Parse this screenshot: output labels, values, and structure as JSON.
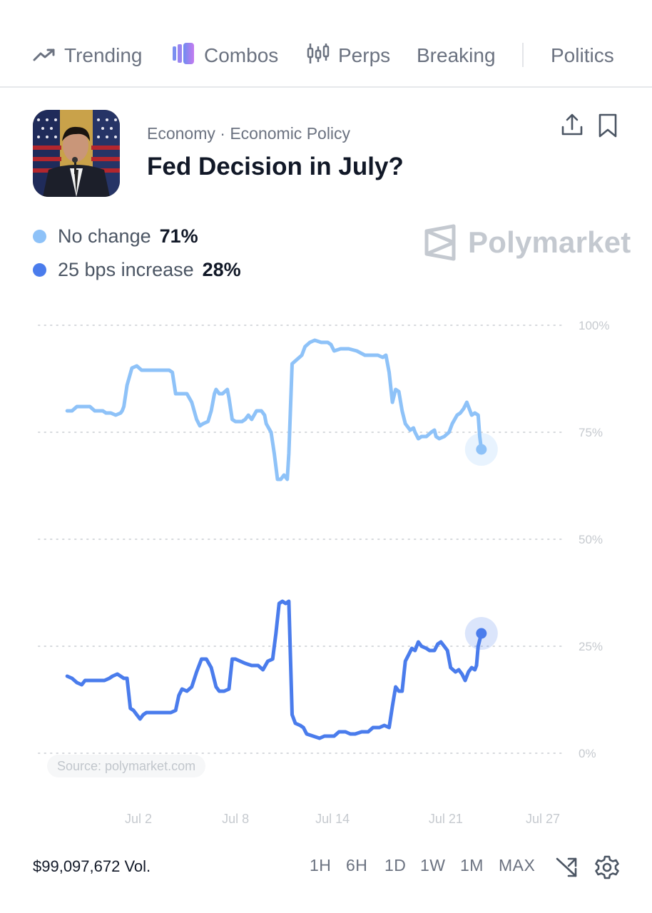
{
  "nav": {
    "items": [
      {
        "label": "Trending",
        "icon": "trending-icon"
      },
      {
        "label": "Combos",
        "icon": "combos-icon"
      },
      {
        "label": "Perps",
        "icon": "candlestick-icon"
      },
      {
        "label": "Breaking",
        "icon": ""
      },
      {
        "label": "Politics",
        "icon": ""
      }
    ]
  },
  "market": {
    "breadcrumb": "Economy · Economic Policy",
    "title": "Fed Decision in July?"
  },
  "legend": [
    {
      "name": "No change",
      "value": "71%",
      "color": "#8ec2f8"
    },
    {
      "name": "25 bps increase",
      "value": "28%",
      "color": "#4a7cec"
    }
  ],
  "brand": {
    "name": "Polymarket"
  },
  "source": "Source: polymarket.com",
  "footer": {
    "volume": "$99,097,672 Vol.",
    "ranges": [
      "1H",
      "6H",
      "1D",
      "1W",
      "1M",
      "MAX"
    ]
  },
  "chart_data": {
    "type": "line",
    "y_ticks": [
      "100%",
      "75%",
      "50%",
      "25%",
      "0%"
    ],
    "ylim": [
      0,
      100
    ],
    "x_ticks": [
      {
        "label": "Jul 2",
        "day": 2
      },
      {
        "label": "Jul 8",
        "day": 8
      },
      {
        "label": "Jul 14",
        "day": 14
      },
      {
        "label": "Jul 21",
        "day": 21
      },
      {
        "label": "Jul 27",
        "day": 27
      }
    ],
    "xlim": [
      -3.2,
      27
    ],
    "grid": true,
    "series": [
      {
        "name": "No change",
        "color": "#8ec2f8",
        "points": [
          [
            -2.4,
            80
          ],
          [
            -2.1,
            80
          ],
          [
            -1.8,
            81
          ],
          [
            -1.4,
            81
          ],
          [
            -1,
            81
          ],
          [
            -0.7,
            80
          ],
          [
            -0.2,
            80
          ],
          [
            0,
            79.5
          ],
          [
            0.3,
            79.5
          ],
          [
            0.6,
            79
          ],
          [
            0.9,
            79.5
          ],
          [
            1,
            80
          ],
          [
            1.1,
            81
          ],
          [
            1.3,
            86
          ],
          [
            1.6,
            90
          ],
          [
            1.9,
            90.5
          ],
          [
            2.2,
            89.5
          ],
          [
            2.8,
            89.5
          ],
          [
            3.5,
            89.5
          ],
          [
            3.9,
            89.5
          ],
          [
            4.1,
            89
          ],
          [
            4.3,
            84
          ],
          [
            4.6,
            84
          ],
          [
            5,
            84
          ],
          [
            5.3,
            82
          ],
          [
            5.6,
            78
          ],
          [
            5.8,
            76.5
          ],
          [
            6,
            77
          ],
          [
            6.3,
            77.5
          ],
          [
            6.5,
            80
          ],
          [
            6.7,
            84
          ],
          [
            6.8,
            85
          ],
          [
            7,
            84
          ],
          [
            7.2,
            84
          ],
          [
            7.5,
            85
          ],
          [
            7.6,
            83
          ],
          [
            7.8,
            78
          ],
          [
            8,
            77.5
          ],
          [
            8.4,
            77.5
          ],
          [
            8.6,
            78
          ],
          [
            8.8,
            79
          ],
          [
            9,
            78
          ],
          [
            9.3,
            80
          ],
          [
            9.6,
            80
          ],
          [
            9.8,
            79
          ],
          [
            9.9,
            77
          ],
          [
            10.2,
            75
          ],
          [
            10.4,
            70
          ],
          [
            10.6,
            64
          ],
          [
            10.8,
            64
          ],
          [
            11,
            65
          ],
          [
            11.2,
            64
          ],
          [
            11.3,
            70
          ],
          [
            11.5,
            91
          ],
          [
            11.8,
            92
          ],
          [
            12.1,
            93
          ],
          [
            12.3,
            95
          ],
          [
            12.6,
            96
          ],
          [
            12.9,
            96.5
          ],
          [
            13.3,
            96
          ],
          [
            13.7,
            96
          ],
          [
            13.9,
            95.5
          ],
          [
            14.1,
            94
          ],
          [
            14.5,
            94.5
          ],
          [
            15,
            94.5
          ],
          [
            15.5,
            94
          ],
          [
            16,
            93
          ],
          [
            16.4,
            93
          ],
          [
            16.8,
            93
          ],
          [
            17.1,
            92.5
          ],
          [
            17.3,
            93
          ],
          [
            17.5,
            89
          ],
          [
            17.7,
            82
          ],
          [
            17.9,
            85
          ],
          [
            18.1,
            84.5
          ],
          [
            18.3,
            80
          ],
          [
            18.5,
            77
          ],
          [
            18.8,
            75.5
          ],
          [
            19,
            76
          ],
          [
            19.1,
            75
          ],
          [
            19.3,
            73.5
          ],
          [
            19.5,
            74
          ],
          [
            19.8,
            74
          ],
          [
            20.1,
            75
          ],
          [
            20.3,
            75.5
          ],
          [
            20.4,
            74
          ],
          [
            20.6,
            73.5
          ],
          [
            20.9,
            74
          ],
          [
            21.2,
            75
          ],
          [
            21.4,
            77
          ],
          [
            21.7,
            79
          ],
          [
            21.9,
            79.5
          ],
          [
            22.1,
            80.5
          ],
          [
            22.3,
            82
          ],
          [
            22.4,
            81
          ],
          [
            22.6,
            79
          ],
          [
            22.8,
            79.5
          ],
          [
            23,
            79
          ],
          [
            23.1,
            74
          ],
          [
            23.2,
            71
          ]
        ]
      },
      {
        "name": "25 bps increase",
        "color": "#4a7cec",
        "points": [
          [
            -2.4,
            18
          ],
          [
            -2.1,
            17.5
          ],
          [
            -1.8,
            16.5
          ],
          [
            -1.5,
            16
          ],
          [
            -1.3,
            17
          ],
          [
            -0.9,
            17
          ],
          [
            -0.4,
            17
          ],
          [
            -0.1,
            17
          ],
          [
            0.2,
            17.5
          ],
          [
            0.4,
            18
          ],
          [
            0.7,
            18.5
          ],
          [
            0.9,
            18
          ],
          [
            1.1,
            17.5
          ],
          [
            1.3,
            17.5
          ],
          [
            1.5,
            10.5
          ],
          [
            1.7,
            10
          ],
          [
            1.9,
            9
          ],
          [
            2.1,
            8
          ],
          [
            2.3,
            9
          ],
          [
            2.5,
            9.5
          ],
          [
            3,
            9.5
          ],
          [
            3.5,
            9.5
          ],
          [
            4,
            9.5
          ],
          [
            4.3,
            10
          ],
          [
            4.5,
            13.5
          ],
          [
            4.7,
            15
          ],
          [
            5,
            14.5
          ],
          [
            5.3,
            15.5
          ],
          [
            5.6,
            19
          ],
          [
            5.9,
            22
          ],
          [
            6.2,
            22
          ],
          [
            6.5,
            20
          ],
          [
            6.8,
            15.5
          ],
          [
            7,
            14.5
          ],
          [
            7.3,
            14.5
          ],
          [
            7.6,
            15
          ],
          [
            7.8,
            22
          ],
          [
            8,
            22
          ],
          [
            8.3,
            21.5
          ],
          [
            8.6,
            21
          ],
          [
            9,
            20.5
          ],
          [
            9.4,
            20.5
          ],
          [
            9.7,
            19.5
          ],
          [
            10,
            21.5
          ],
          [
            10.3,
            22
          ],
          [
            10.5,
            28
          ],
          [
            10.7,
            35
          ],
          [
            10.9,
            35.5
          ],
          [
            11.1,
            35
          ],
          [
            11.3,
            35.5
          ],
          [
            11.5,
            9
          ],
          [
            11.7,
            7
          ],
          [
            12,
            6.5
          ],
          [
            12.2,
            6
          ],
          [
            12.4,
            4.5
          ],
          [
            12.8,
            4
          ],
          [
            13.2,
            3.5
          ],
          [
            13.5,
            4
          ],
          [
            13.8,
            4
          ],
          [
            14.1,
            4
          ],
          [
            14.4,
            5
          ],
          [
            14.8,
            5
          ],
          [
            15.1,
            4.5
          ],
          [
            15.4,
            4.5
          ],
          [
            15.8,
            5
          ],
          [
            16.2,
            5
          ],
          [
            16.5,
            6
          ],
          [
            16.9,
            6
          ],
          [
            17.2,
            6.5
          ],
          [
            17.5,
            6
          ],
          [
            17.7,
            11
          ],
          [
            17.9,
            15.5
          ],
          [
            18.1,
            14.5
          ],
          [
            18.3,
            14.5
          ],
          [
            18.5,
            21.5
          ],
          [
            18.7,
            23
          ],
          [
            18.9,
            24.5
          ],
          [
            19.1,
            24
          ],
          [
            19.3,
            26
          ],
          [
            19.5,
            25
          ],
          [
            19.8,
            24.5
          ],
          [
            20,
            24
          ],
          [
            20.3,
            24
          ],
          [
            20.5,
            25.5
          ],
          [
            20.7,
            26
          ],
          [
            20.9,
            25
          ],
          [
            21.1,
            24
          ],
          [
            21.3,
            20
          ],
          [
            21.6,
            19
          ],
          [
            21.8,
            19.5
          ],
          [
            22,
            18.5
          ],
          [
            22.2,
            17
          ],
          [
            22.4,
            19
          ],
          [
            22.6,
            20
          ],
          [
            22.8,
            19.5
          ],
          [
            22.9,
            20.5
          ],
          [
            23,
            25
          ],
          [
            23.2,
            28
          ]
        ]
      }
    ]
  }
}
